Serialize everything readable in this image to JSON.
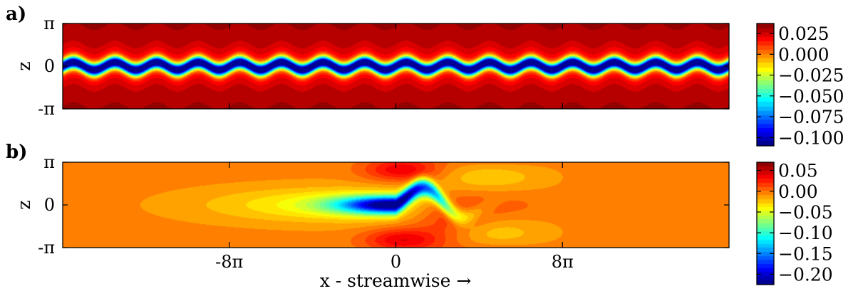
{
  "chart_data": [
    {
      "type": "heatmap",
      "panel_label": "a)",
      "xlabel": "",
      "ylabel": "z",
      "ytick_labels": [
        "π",
        "0",
        "-π"
      ],
      "xtick_labels": [],
      "xlim": [
        -20,
        20
      ],
      "ylim": [
        -3.14159,
        3.14159
      ],
      "pattern": "streamwise-periodic low-speed streak, sinuous meander, 16 wavelengths",
      "streak_center_value": -0.105,
      "background_value": 0.032,
      "colorbar": {
        "ticks": [
          0.025,
          0.0,
          -0.025,
          -0.05,
          -0.075,
          -0.1
        ],
        "tick_labels": [
          "0.025",
          "0.000",
          "−0.025",
          "−0.050",
          "−0.075",
          "−0.100"
        ],
        "vmin": -0.11,
        "vmax": 0.037
      }
    },
    {
      "type": "heatmap",
      "panel_label": "b)",
      "xlabel": "x - streamwise →",
      "ylabel": "z",
      "ytick_labels": [
        "π",
        "0",
        "-π"
      ],
      "xtick_labels": [
        "-8π",
        "0",
        "8π"
      ],
      "xtick_values": [
        -25.1327,
        0,
        25.1327
      ],
      "xlim": [
        -50.2655,
        50.2655
      ],
      "ylim": [
        -3.14159,
        3.14159
      ],
      "pattern": "localized streak with downstream sinuous wave packet",
      "min_value": -0.22,
      "max_value": 0.06,
      "colorbar": {
        "ticks": [
          0.05,
          0.0,
          -0.05,
          -0.1,
          -0.15,
          -0.2
        ],
        "tick_labels": [
          "0.05",
          "0.00",
          "−0.05",
          "−0.10",
          "−0.15",
          "−0.20"
        ],
        "vmin": -0.225,
        "vmax": 0.07
      }
    }
  ],
  "colors": {
    "jet_dark_red": "#7f0000",
    "jet_dark_blue": "#00008f",
    "axes": "#000000"
  }
}
